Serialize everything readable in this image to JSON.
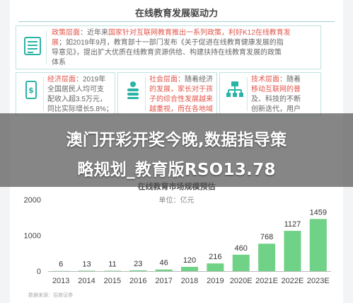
{
  "header": {
    "title": "在线教育发展驱动力"
  },
  "drivers": {
    "policy": {
      "icon": "document-list-icon",
      "head": "政策层面",
      "line1_a": "：近年来",
      "line1_b": "国家针对互联网教育推出一系列政策，利好K12在线教育发",
      "line2_a": "展",
      "line2_b": "；如2019年9月，教育部十一部门发布《关于促进在线教育健康发展的指",
      "line3": "导意见》，提出扩大优质在线教育资源供给、构建扶持在线教育发展的政策",
      "line4": "体系"
    },
    "economy": {
      "icon": "money-phone-icon",
      "head": "经济层面",
      "lines": [
        "：2019年",
        "全国居民人均可支",
        "配收入超3.5万元，",
        "同比实际增长5.8%；"
      ]
    },
    "social": {
      "icon": "people-stack-icon",
      "head": "社会层面",
      "lines": [
        "：随着经济",
        "的发展，家长对于孩",
        "子的综合性发展越来",
        "越重视，而在各地域"
      ]
    },
    "tech": {
      "icon": "network-icon",
      "head": "技术层面",
      "lines": [
        "：随着",
        "移动互联网的普",
        "及、科技的不断",
        "创新迭代，用户"
      ]
    }
  },
  "overlay": {
    "line1": "澳门开彩开奖今晚,数据指导策",
    "line2": "略规划_教育版RSO13.78"
  },
  "chart_data": {
    "type": "bar",
    "title": "在线教育市场规模预估",
    "unit_label": "单位：亿元",
    "categories": [
      "2013",
      "2014",
      "2015",
      "2016",
      "2017",
      "2018",
      "2019",
      "2020E",
      "2021E",
      "2022E",
      "2023E"
    ],
    "values": [
      6,
      13,
      11,
      23,
      46,
      120,
      216,
      460,
      768,
      1127,
      1459
    ],
    "ylim": [
      0,
      2000
    ],
    "yticks": [
      0,
      1000,
      2000
    ],
    "grid": false,
    "bar_color": "#6fd286"
  },
  "footer": {
    "source": "数据来源：招商证券"
  }
}
